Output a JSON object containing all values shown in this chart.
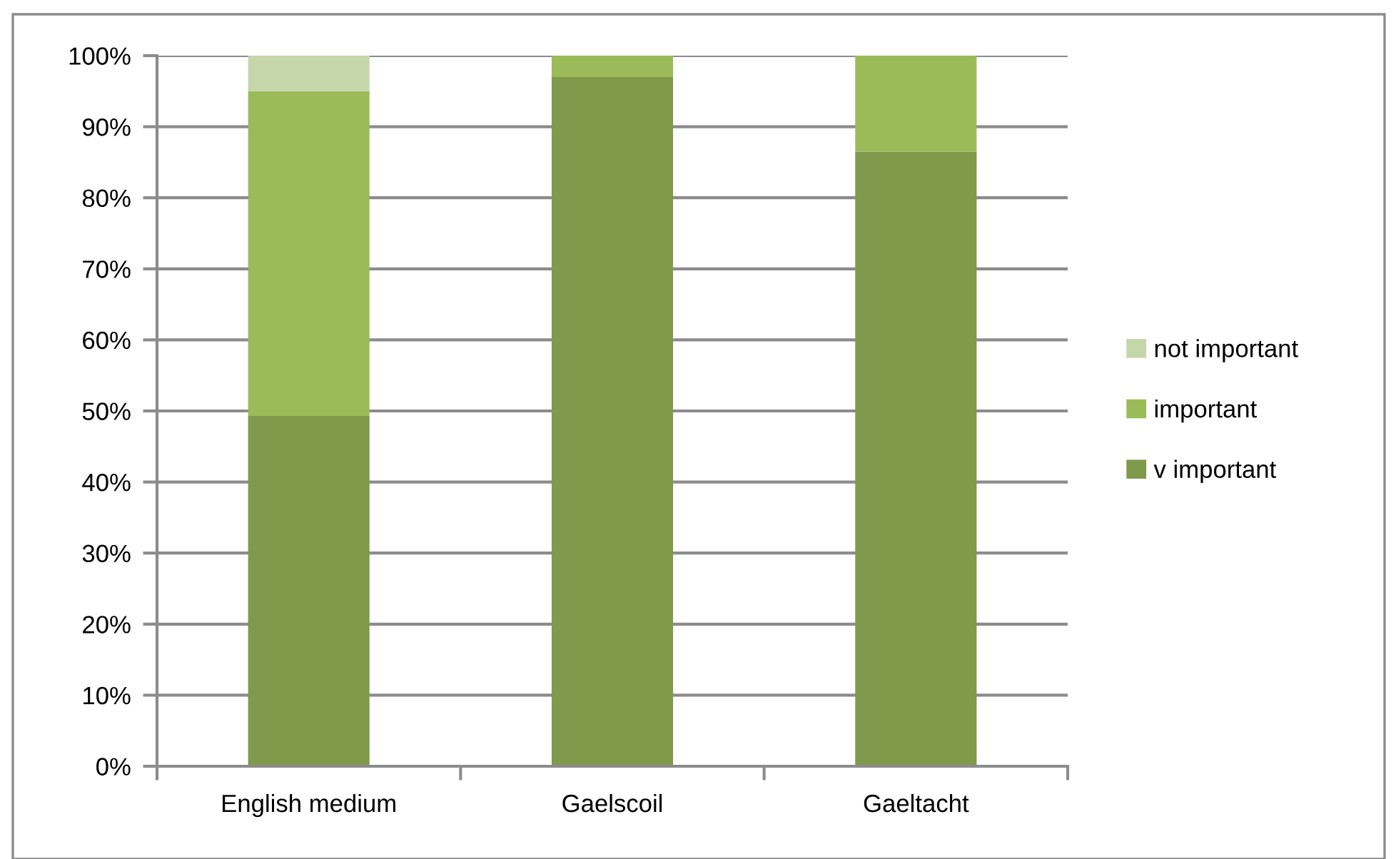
{
  "chart_data": {
    "type": "bar",
    "stacked": true,
    "categories": [
      "English medium",
      "Gaelscoil",
      "Gaeltacht"
    ],
    "series": [
      {
        "name": "v important",
        "color": "#7f9a4a",
        "values": [
          49.3,
          97,
          86.5
        ]
      },
      {
        "name": "important",
        "color": "#9bbb59",
        "values": [
          45.7,
          3,
          13.5
        ]
      },
      {
        "name": "not important",
        "color": "#c6d6ab",
        "values": [
          5.0,
          null,
          null
        ]
      }
    ],
    "ylim": [
      0,
      100
    ],
    "yticks": [
      {
        "value": 0,
        "label": "0%"
      },
      {
        "value": 10,
        "label": "10%"
      },
      {
        "value": 20,
        "label": "20%"
      },
      {
        "value": 30,
        "label": "30%"
      },
      {
        "value": 40,
        "label": "40%"
      },
      {
        "value": 50,
        "label": "50%"
      },
      {
        "value": 60,
        "label": "60%"
      },
      {
        "value": 70,
        "label": "70%"
      },
      {
        "value": 80,
        "label": "80%"
      },
      {
        "value": 90,
        "label": "90%"
      },
      {
        "value": 100,
        "label": "100%"
      }
    ],
    "grid": "y",
    "legend": "right"
  }
}
